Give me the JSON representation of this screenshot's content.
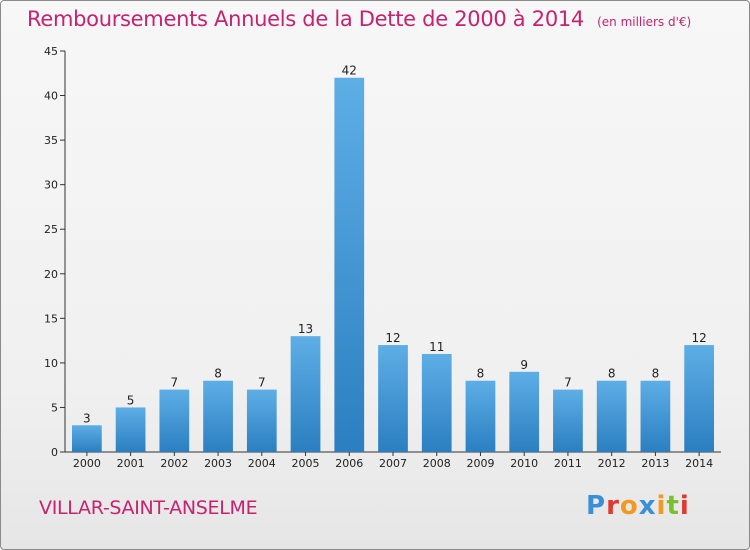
{
  "header": {
    "title": "Remboursements Annuels de la Dette de 2000 à 2014",
    "unit": "(en milliers d'€)"
  },
  "footer": {
    "commune": "VILLAR-SAINT-ANSELME",
    "logo": "Proxiti"
  },
  "colors": {
    "title": "#c4236f",
    "bar_light": "#5eaee6",
    "bar_dark": "#2b7fc0",
    "logo_letters": [
      "#3a8fd6",
      "#e03a2f",
      "#f29a1d",
      "#3a8fd6",
      "#f29a1d",
      "#7cbf2e",
      "#e03a2f"
    ]
  },
  "chart_data": {
    "type": "bar",
    "categories": [
      "2000",
      "2001",
      "2002",
      "2003",
      "2004",
      "2005",
      "2006",
      "2007",
      "2008",
      "2009",
      "2010",
      "2011",
      "2012",
      "2013",
      "2014"
    ],
    "values": [
      3,
      5,
      7,
      8,
      7,
      13,
      42,
      12,
      11,
      8,
      9,
      7,
      8,
      8,
      12
    ],
    "ylim": [
      0,
      45
    ],
    "yticks": [
      0,
      5,
      10,
      15,
      20,
      25,
      30,
      35,
      40,
      45
    ],
    "grid": false,
    "data_labels": true
  }
}
